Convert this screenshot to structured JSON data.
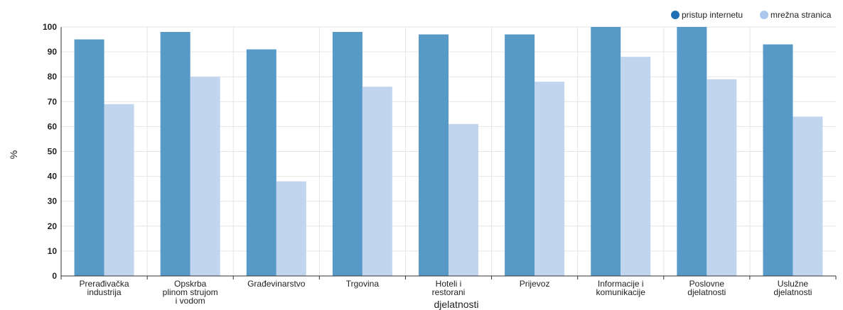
{
  "chart_data": {
    "type": "bar",
    "title": "",
    "xlabel": "djelatnosti",
    "ylabel": "%",
    "ylim": [
      0,
      100
    ],
    "yticks": [
      0,
      10,
      20,
      30,
      40,
      50,
      60,
      70,
      80,
      90,
      100
    ],
    "grid": true,
    "legend_position": "top-right",
    "categories": [
      [
        "Prerađivačka",
        "industrija"
      ],
      [
        "Opskrba",
        "plinom strujom",
        "i vodom"
      ],
      [
        "Građevinarstvo"
      ],
      [
        "Trgovina"
      ],
      [
        "Hoteli i",
        "restorani"
      ],
      [
        "Prijevoz"
      ],
      [
        "Informacije i",
        "komunikacije"
      ],
      [
        "Poslovne",
        "djelatnosti"
      ],
      [
        "Uslužne",
        "djelatnosti"
      ]
    ],
    "series": [
      {
        "name": "pristup internetu",
        "color": "#5799c7",
        "legend_color": "#1f6fb4",
        "values": [
          95,
          98,
          91,
          98,
          97,
          97,
          100,
          100,
          93
        ]
      },
      {
        "name": "mrežna stranica",
        "color": "#c1d5ef",
        "legend_color": "#aac7ec",
        "values": [
          69,
          80,
          38,
          76,
          61,
          78,
          88,
          79,
          64
        ]
      }
    ]
  }
}
